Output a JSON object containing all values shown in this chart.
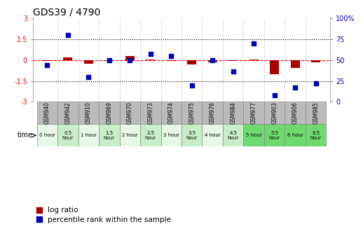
{
  "title": "GDS39 / 4790",
  "samples": [
    "GSM940",
    "GSM942",
    "GSM910",
    "GSM969",
    "GSM970",
    "GSM973",
    "GSM974",
    "GSM975",
    "GSM976",
    "GSM984",
    "GSM977",
    "GSM903",
    "GSM906",
    "GSM985"
  ],
  "time_labels": [
    "0 hour",
    "0.5\nhour",
    "1 hour",
    "1.5\nhour",
    "2 hour",
    "2.5\nhour",
    "3 hour",
    "3.5\nhour",
    "4 hour",
    "4.5\nhour",
    "5 hour",
    "5.5\nhour",
    "6 hour",
    "6.5\nhour"
  ],
  "time_bg": [
    "#E8F8E8",
    "#C8EEC8",
    "#E8F8E8",
    "#C8EEC8",
    "#E8F8E8",
    "#C8EEC8",
    "#E8F8E8",
    "#C8EEC8",
    "#E8F8E8",
    "#C8EEC8",
    "#6ED96E",
    "#6ED96E",
    "#6ED96E",
    "#6ED96E"
  ],
  "log_ratio": [
    -0.05,
    0.2,
    -0.25,
    -0.05,
    0.3,
    0.05,
    -0.05,
    -0.3,
    -0.15,
    -0.05,
    0.05,
    -1.0,
    -0.55,
    -0.15
  ],
  "percentile_rank": [
    44,
    80,
    30,
    50,
    50,
    57,
    55,
    20,
    50,
    36,
    70,
    8,
    17,
    22
  ],
  "ylim_left": [
    -3,
    3
  ],
  "ylim_right": [
    0,
    100
  ],
  "yticks_left": [
    -3,
    -1.5,
    0,
    1.5,
    3
  ],
  "yticks_right": [
    0,
    25,
    50,
    75,
    100
  ],
  "dotted_lines": [
    -1.5,
    1.5
  ],
  "zero_line_y": 0,
  "bar_color": "#AA0000",
  "dot_color": "#0000BB",
  "title_fontsize": 10,
  "tick_fontsize": 7,
  "legend_fontsize": 7.5,
  "sample_bg_color": "#BBBBBB",
  "border_color": "#888888"
}
